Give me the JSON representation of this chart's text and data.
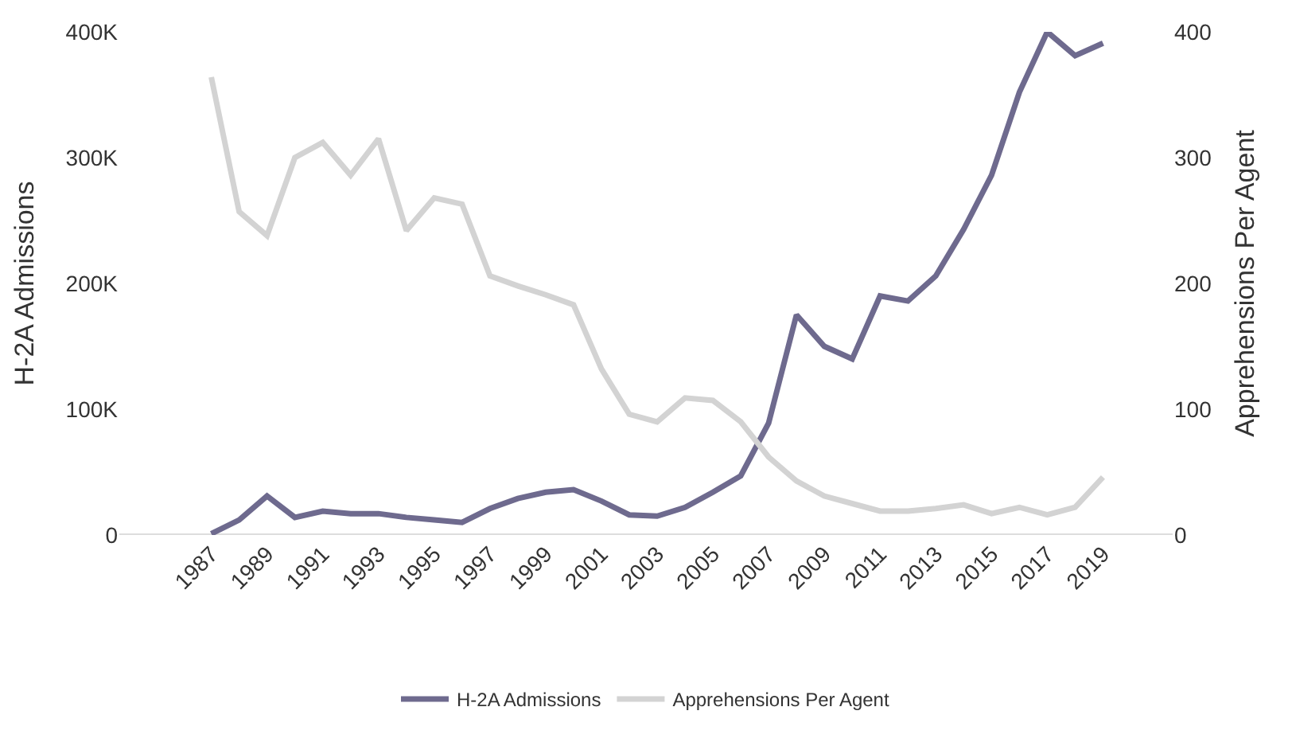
{
  "chart_data": {
    "type": "line",
    "ylabel": "H-2A Admissions",
    "y2label": "Apprehensions Per Agent",
    "x": [
      1987,
      1988,
      1989,
      1990,
      1991,
      1992,
      1993,
      1994,
      1995,
      1996,
      1997,
      1998,
      1999,
      2000,
      2001,
      2002,
      2003,
      2004,
      2005,
      2006,
      2007,
      2008,
      2009,
      2010,
      2011,
      2012,
      2013,
      2014,
      2015,
      2016,
      2017,
      2018,
      2019
    ],
    "series": [
      {
        "name": "H-2A Admissions",
        "color": "#6e6a8e",
        "values": [
          1000,
          12000,
          31000,
          14000,
          19000,
          17000,
          17000,
          14000,
          12000,
          10000,
          21000,
          29000,
          34000,
          36000,
          27000,
          16000,
          15000,
          22000,
          34000,
          47000,
          89000,
          175000,
          150000,
          140000,
          190000,
          186000,
          206000,
          243000,
          286000,
          352000,
          400000,
          381000,
          391000
        ]
      },
      {
        "name": "Apprehensions Per Agent",
        "color": "#d3d3d3",
        "axis": "y2",
        "values": [
          364,
          257,
          238,
          300,
          312,
          286,
          315,
          242,
          268,
          263,
          206,
          198,
          191,
          183,
          132,
          96,
          90,
          109,
          107,
          90,
          62,
          43,
          31,
          25,
          19,
          19,
          21,
          24,
          17,
          22,
          16,
          22,
          46
        ]
      }
    ],
    "xlim": [
      1983.7,
      2021.5
    ],
    "xticks": [
      1987,
      1989,
      1991,
      1993,
      1995,
      1997,
      1999,
      2001,
      2003,
      2005,
      2007,
      2009,
      2011,
      2013,
      2015,
      2017,
      2019
    ],
    "ylim": [
      0,
      400000
    ],
    "yticks": [
      {
        "value": 0,
        "label": "0"
      },
      {
        "value": 100000,
        "label": "100K"
      },
      {
        "value": 200000,
        "label": "200K"
      },
      {
        "value": 300000,
        "label": "300K"
      },
      {
        "value": 400000,
        "label": "400K"
      }
    ],
    "y2lim": [
      0,
      400
    ],
    "y2ticks": [
      0,
      100,
      200,
      300,
      400
    ],
    "grid": false,
    "legend": "bottom",
    "marker": "none",
    "line_style": "solid"
  }
}
